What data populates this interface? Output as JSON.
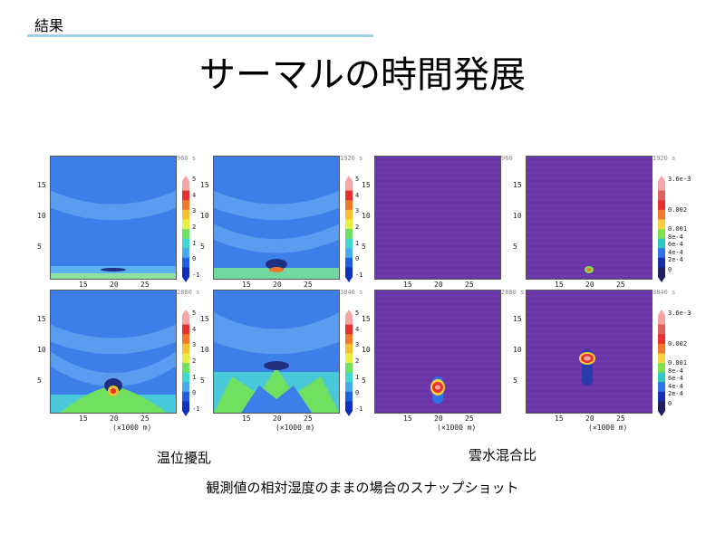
{
  "header": {
    "section_label": "結果",
    "title": "サーマルの時間発展"
  },
  "captions": {
    "left_group": "温位擾乱",
    "right_group": "雲水混合比",
    "bottom_note": "観測値の相対湿度のままの場合のスナップショット"
  },
  "axes": {
    "y_ticks": [
      "15",
      "10",
      "5"
    ],
    "x_ticks": [
      "15",
      "20",
      "25"
    ],
    "x_unit": "(×1000 m)"
  },
  "panels": [
    {
      "id": "theta-t1",
      "time": "960 s"
    },
    {
      "id": "theta-t2",
      "time": "1920 s"
    },
    {
      "id": "qc-t1",
      "time": "960"
    },
    {
      "id": "qc-t2",
      "time": "1920 s"
    },
    {
      "id": "theta-t3",
      "time": "2880 s"
    },
    {
      "id": "theta-t4",
      "time": "3840 s"
    },
    {
      "id": "qc-t3",
      "time": "2880 s"
    },
    {
      "id": "qc-t4",
      "time": "3840 s"
    }
  ],
  "colorbars": {
    "theta": {
      "labels": [
        "5",
        "4",
        "3",
        "2",
        "1",
        "0",
        "-1"
      ]
    },
    "qc": {
      "labels": [
        "3.6e-3",
        "0.002",
        "0.001",
        "8e-4",
        "6e-4",
        "4e-4",
        "2e-4",
        "0"
      ]
    }
  },
  "colors": {
    "field_blue": "#3d7fe8",
    "field_purple": "#6a35a8",
    "rule": "#9fd0e8"
  }
}
